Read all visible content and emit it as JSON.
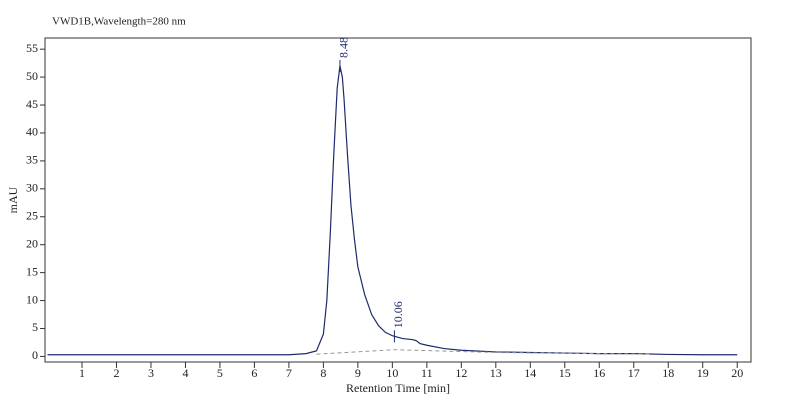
{
  "chart_data": {
    "type": "line",
    "title": "VWD1B,Wavelength=280 nm",
    "xlabel": "Retention Time [min]",
    "ylabel": "mAU",
    "xlim": [
      0,
      20.4
    ],
    "ylim": [
      -1,
      57
    ],
    "xticks": [
      1,
      2,
      3,
      4,
      5,
      6,
      7,
      8,
      9,
      10,
      11,
      12,
      13,
      14,
      15,
      16,
      17,
      18,
      19,
      20
    ],
    "yticks": [
      0,
      5,
      10,
      15,
      20,
      25,
      30,
      35,
      40,
      45,
      50,
      55
    ],
    "series": [
      {
        "color": "#1f2a6b",
        "dashed": false,
        "x": [
          0,
          7.0,
          7.5,
          7.8,
          8.0,
          8.1,
          8.2,
          8.3,
          8.4,
          8.48,
          8.55,
          8.6,
          8.7,
          8.8,
          8.9,
          9.0,
          9.2,
          9.4,
          9.6,
          9.8,
          10.0,
          10.06,
          10.3,
          10.6,
          10.7,
          10.8,
          11.0,
          11.5,
          12.0,
          13.0,
          14.0,
          15.0,
          16.0,
          17.0,
          18.0,
          19.0,
          20.0
        ],
        "values": [
          0.3,
          0.3,
          0.5,
          1,
          4,
          10,
          22,
          36,
          48,
          52,
          50,
          46,
          36,
          27,
          21,
          16,
          11,
          7.5,
          5.5,
          4.3,
          3.7,
          3.6,
          3.2,
          3.0,
          2.8,
          2.3,
          2.0,
          1.4,
          1.1,
          0.8,
          0.7,
          0.6,
          0.5,
          0.5,
          0.35,
          0.3,
          0.3
        ]
      },
      {
        "color": "#999999",
        "dashed": true,
        "x": [
          7.8,
          10.06,
          13.0,
          17.5
        ],
        "values": [
          0.4,
          1.2,
          0.7,
          0.4
        ]
      }
    ],
    "annotations": [
      {
        "x": 8.48,
        "y": 52,
        "label": "8.48"
      },
      {
        "x": 10.06,
        "y": 3.6,
        "label": "10.06"
      }
    ]
  }
}
